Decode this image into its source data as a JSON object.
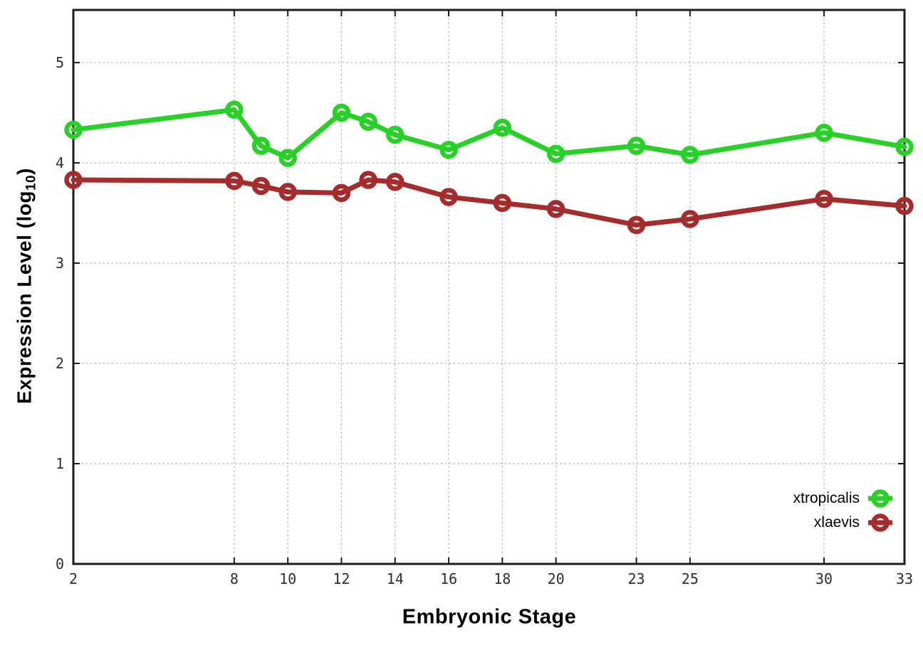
{
  "figure": {
    "xlabel": "Embryonic Stage",
    "ylabel_prefix": "Expression Level (log",
    "ylabel_sub": "10",
    "ylabel_suffix": ")"
  },
  "chart_data": {
    "type": "line",
    "x": [
      2,
      8,
      9,
      10,
      12,
      13,
      14,
      16,
      18,
      20,
      23,
      25,
      30,
      33
    ],
    "series": [
      {
        "name": "xtropicalis",
        "color": "#28d028",
        "values": [
          4.33,
          4.53,
          4.17,
          4.05,
          4.5,
          4.41,
          4.28,
          4.13,
          4.35,
          4.09,
          4.17,
          4.08,
          4.3,
          4.16
        ]
      },
      {
        "name": "xlaevis",
        "color": "#a52c2c",
        "values": [
          3.83,
          3.82,
          3.77,
          3.71,
          3.7,
          3.83,
          3.81,
          3.66,
          3.6,
          3.54,
          3.38,
          3.44,
          3.64,
          3.57
        ]
      }
    ],
    "title": "",
    "xlabel": "Embryonic Stage",
    "ylabel": "Expression Level (log10)",
    "xticks": [
      2,
      8,
      10,
      12,
      14,
      16,
      18,
      20,
      23,
      25,
      30,
      33
    ],
    "yticks": [
      0,
      1,
      2,
      3,
      4,
      5
    ],
    "xlim": [
      2,
      33
    ],
    "ylim": [
      0,
      5.525
    ],
    "grid": true,
    "legend_position": "bottom-right",
    "marker": "open-circle",
    "background_color": "#ffffff",
    "grid_color": "#bdbdbd",
    "axis_color": "#1c1c1c",
    "tick_label_color": "#2e2e2e"
  }
}
